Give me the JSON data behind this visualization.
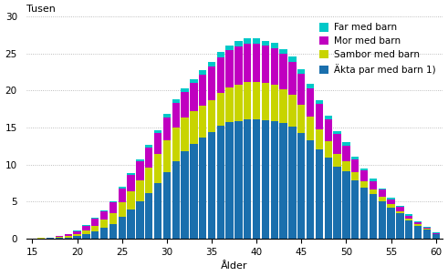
{
  "ages": [
    15,
    16,
    17,
    18,
    19,
    20,
    21,
    22,
    23,
    24,
    25,
    26,
    27,
    28,
    29,
    30,
    31,
    32,
    33,
    34,
    35,
    36,
    37,
    38,
    39,
    40,
    41,
    42,
    43,
    44,
    45,
    46,
    47,
    48,
    49,
    50,
    51,
    52,
    53,
    54,
    55,
    56,
    57,
    58,
    59,
    60
  ],
  "akta_par": [
    0.04,
    0.06,
    0.09,
    0.13,
    0.2,
    0.35,
    0.6,
    0.95,
    1.45,
    2.0,
    3.0,
    4.0,
    5.0,
    6.2,
    7.5,
    9.0,
    10.5,
    11.8,
    12.8,
    13.7,
    14.4,
    15.2,
    15.7,
    15.9,
    16.1,
    16.1,
    16.0,
    15.9,
    15.6,
    15.1,
    14.3,
    13.3,
    12.1,
    10.9,
    9.7,
    9.1,
    7.9,
    6.9,
    6.0,
    5.1,
    4.2,
    3.4,
    2.5,
    1.8,
    1.2,
    0.6
  ],
  "sambor": [
    0.02,
    0.03,
    0.05,
    0.1,
    0.18,
    0.3,
    0.55,
    0.85,
    1.1,
    1.45,
    1.9,
    2.4,
    2.9,
    3.4,
    3.9,
    4.3,
    4.5,
    4.5,
    4.4,
    4.3,
    4.3,
    4.5,
    4.7,
    4.9,
    5.0,
    5.1,
    5.0,
    4.9,
    4.6,
    4.3,
    3.8,
    3.2,
    2.7,
    2.2,
    1.8,
    1.4,
    1.1,
    0.9,
    0.7,
    0.6,
    0.45,
    0.35,
    0.25,
    0.18,
    0.12,
    0.07
  ],
  "mor": [
    0.01,
    0.02,
    0.05,
    0.1,
    0.2,
    0.4,
    0.6,
    0.9,
    1.2,
    1.5,
    1.9,
    2.2,
    2.5,
    2.7,
    2.9,
    3.1,
    3.3,
    3.5,
    3.8,
    4.1,
    4.5,
    4.8,
    5.0,
    5.1,
    5.2,
    5.1,
    5.0,
    4.9,
    4.7,
    4.5,
    4.2,
    3.8,
    3.4,
    3.0,
    2.6,
    2.1,
    1.7,
    1.4,
    1.1,
    0.9,
    0.7,
    0.55,
    0.4,
    0.3,
    0.2,
    0.12
  ],
  "far": [
    0.0,
    0.01,
    0.01,
    0.02,
    0.03,
    0.05,
    0.07,
    0.1,
    0.13,
    0.16,
    0.2,
    0.24,
    0.28,
    0.32,
    0.37,
    0.42,
    0.47,
    0.52,
    0.57,
    0.62,
    0.65,
    0.68,
    0.7,
    0.71,
    0.72,
    0.72,
    0.71,
    0.69,
    0.66,
    0.63,
    0.59,
    0.55,
    0.51,
    0.47,
    0.43,
    0.39,
    0.35,
    0.31,
    0.27,
    0.23,
    0.2,
    0.17,
    0.14,
    0.11,
    0.08,
    0.05
  ],
  "color_akta": "#1a6fad",
  "color_sambor": "#c8d400",
  "color_mor": "#c000c0",
  "color_far": "#00c8c8",
  "xlabel": "Ålder",
  "ylabel": "Tusen",
  "ylim": [
    0,
    30
  ],
  "yticks": [
    0,
    5,
    10,
    15,
    20,
    25,
    30
  ],
  "xticks": [
    15,
    20,
    25,
    30,
    35,
    40,
    45,
    50,
    55,
    60
  ],
  "legend_labels": [
    "Far med barn",
    "Mor med barn",
    "Sambor med barn",
    "Äkta par med barn 1)"
  ],
  "legend_colors": [
    "#00c8c8",
    "#c000c0",
    "#c8d400",
    "#1a6fad"
  ]
}
